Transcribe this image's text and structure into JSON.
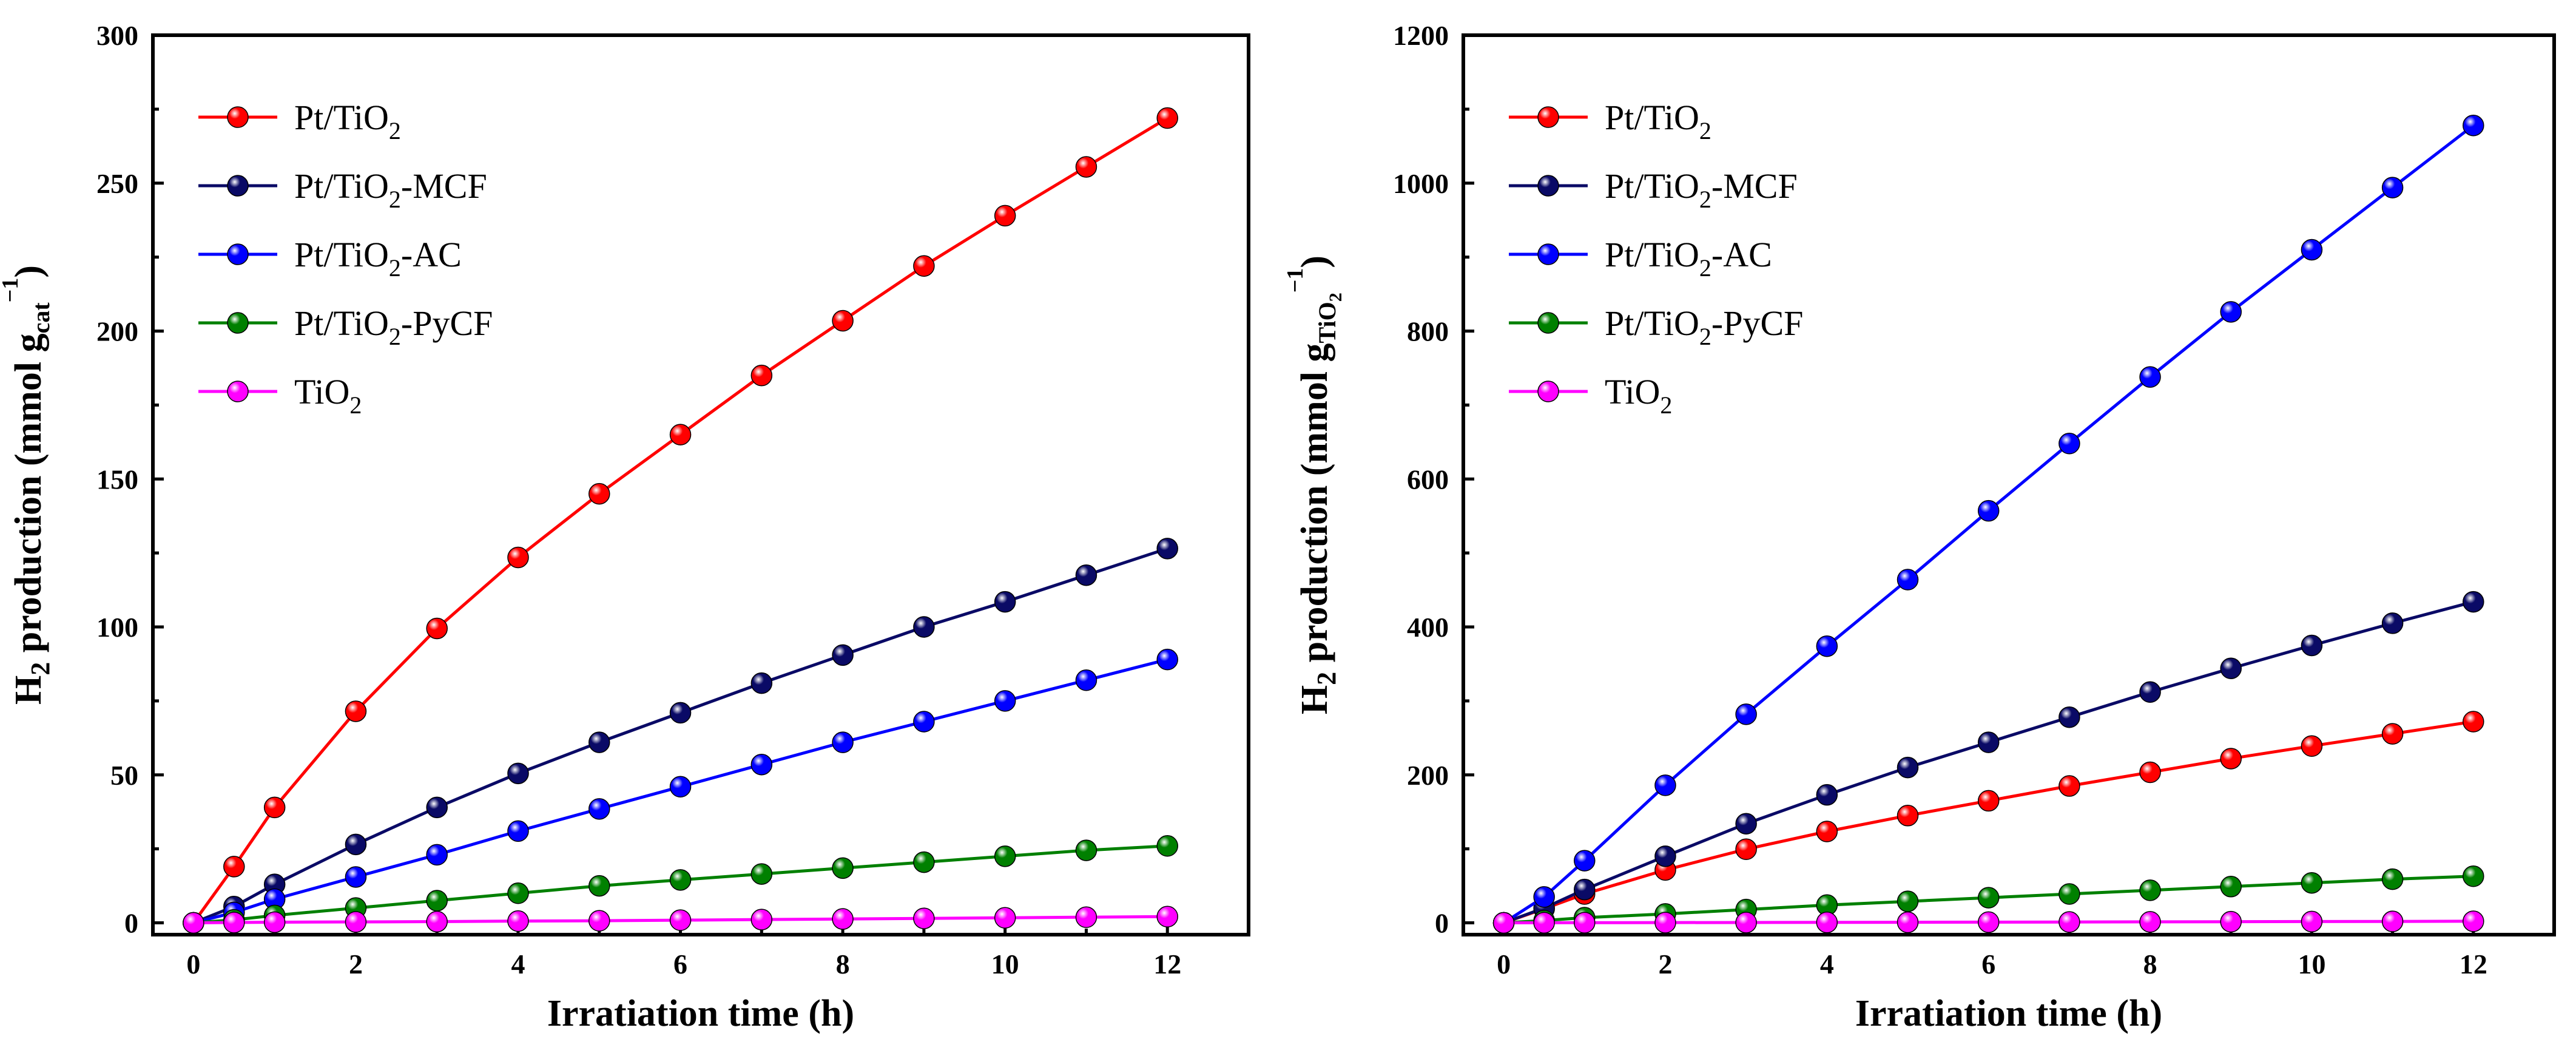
{
  "chart_data": [
    {
      "type": "line",
      "panel": "left",
      "xlabel": "Irratiation time (h)",
      "ylabel_parts": [
        "H",
        "2",
        " production (mmol g",
        "cat",
        "−1",
        ")"
      ],
      "xlim": [
        -0.5,
        13
      ],
      "ylim": [
        -4,
        300
      ],
      "xticks": [
        0,
        2,
        4,
        6,
        8,
        10,
        12
      ],
      "yticks": [
        0,
        50,
        100,
        150,
        200,
        250,
        300
      ],
      "legend_position": "top-left",
      "series": [
        {
          "name_parts": [
            "Pt/TiO",
            "2",
            ""
          ],
          "color": "#ff0000",
          "x": [
            0,
            0.5,
            1,
            2,
            3,
            4,
            5,
            6,
            7,
            8,
            9,
            10,
            11,
            12
          ],
          "values": [
            0,
            19,
            39,
            71.5,
            99.5,
            123.5,
            145,
            165,
            185,
            203.5,
            222,
            239,
            255.5,
            272
          ]
        },
        {
          "name_parts": [
            "Pt/TiO",
            "2",
            "-MCF"
          ],
          "color": "#0a0a66",
          "x": [
            0,
            0.5,
            1,
            2,
            3,
            4,
            5,
            6,
            7,
            8,
            9,
            10,
            11,
            12
          ],
          "values": [
            0,
            5.5,
            13,
            26.5,
            39,
            50.5,
            61,
            71,
            81,
            90.5,
            100,
            108.5,
            117.5,
            126.5
          ]
        },
        {
          "name_parts": [
            "Pt/TiO",
            "2",
            "-AC"
          ],
          "color": "#0000ff",
          "x": [
            0,
            0.5,
            1,
            2,
            3,
            4,
            5,
            6,
            7,
            8,
            9,
            10,
            11,
            12
          ],
          "values": [
            0,
            3.5,
            8,
            15.5,
            23,
            31,
            38.5,
            46,
            53.5,
            61,
            68,
            75,
            82,
            89
          ]
        },
        {
          "name_parts": [
            "Pt/TiO",
            "2",
            "-PyCF"
          ],
          "color": "#008000",
          "x": [
            0,
            0.5,
            1,
            2,
            3,
            4,
            5,
            6,
            7,
            8,
            9,
            10,
            11,
            12
          ],
          "values": [
            0,
            1,
            2.5,
            5,
            7.5,
            10,
            12.5,
            14.5,
            16.5,
            18.5,
            20.5,
            22.5,
            24.5,
            26
          ]
        },
        {
          "name_parts": [
            "TiO",
            "2",
            ""
          ],
          "color": "#ff00ff",
          "x": [
            0,
            0.5,
            1,
            2,
            3,
            4,
            5,
            6,
            7,
            8,
            9,
            10,
            11,
            12
          ],
          "values": [
            0,
            0.1,
            0.2,
            0.3,
            0.4,
            0.6,
            0.7,
            0.9,
            1.1,
            1.3,
            1.5,
            1.7,
            1.9,
            2.1
          ]
        }
      ]
    },
    {
      "type": "line",
      "panel": "right",
      "xlabel": "Irratiation time (h)",
      "ylabel_parts": [
        "H",
        "2",
        " production (mmol g",
        "TiO",
        "2",
        "−1",
        ")"
      ],
      "xlim": [
        -0.5,
        13
      ],
      "ylim": [
        -16,
        1200
      ],
      "xticks": [
        0,
        2,
        4,
        6,
        8,
        10,
        12
      ],
      "yticks": [
        0,
        200,
        400,
        600,
        800,
        1000,
        1200
      ],
      "legend_position": "top-left",
      "series": [
        {
          "name_parts": [
            "Pt/TiO",
            "2",
            ""
          ],
          "color": "#ff0000",
          "x": [
            0,
            0.5,
            1,
            2,
            3,
            4,
            5,
            6,
            7,
            8,
            9,
            10,
            11,
            12
          ],
          "values": [
            0,
            19,
            39,
            71.5,
            99.5,
            123.5,
            145,
            165,
            185,
            203.5,
            222,
            239,
            255.5,
            272
          ]
        },
        {
          "name_parts": [
            "Pt/TiO",
            "2",
            "-MCF"
          ],
          "color": "#0a0a66",
          "x": [
            0,
            0.5,
            1,
            2,
            3,
            4,
            5,
            6,
            7,
            8,
            9,
            10,
            11,
            12
          ],
          "values": [
            0,
            20,
            45,
            90,
            134,
            173,
            210,
            244,
            278,
            312,
            344,
            375,
            405,
            434
          ]
        },
        {
          "name_parts": [
            "Pt/TiO",
            "2",
            "-AC"
          ],
          "color": "#0000ff",
          "x": [
            0,
            0.5,
            1,
            2,
            3,
            4,
            5,
            6,
            7,
            8,
            9,
            10,
            11,
            12
          ],
          "values": [
            0,
            35,
            84,
            186,
            282,
            374,
            464,
            557,
            648,
            738,
            826,
            910,
            994,
            1078
          ]
        },
        {
          "name_parts": [
            "Pt/TiO",
            "2",
            "-PyCF"
          ],
          "color": "#008000",
          "x": [
            0,
            0.5,
            1,
            2,
            3,
            4,
            5,
            6,
            7,
            8,
            9,
            10,
            11,
            12
          ],
          "values": [
            0,
            3,
            7,
            12,
            18,
            24,
            29,
            34,
            39,
            44,
            49,
            54,
            59,
            63
          ]
        },
        {
          "name_parts": [
            "TiO",
            "2",
            ""
          ],
          "color": "#ff00ff",
          "x": [
            0,
            0.5,
            1,
            2,
            3,
            4,
            5,
            6,
            7,
            8,
            9,
            10,
            11,
            12
          ],
          "values": [
            0,
            0.1,
            0.2,
            0.3,
            0.4,
            0.6,
            0.7,
            0.9,
            1.1,
            1.3,
            1.5,
            1.7,
            1.9,
            2.1
          ]
        }
      ]
    }
  ]
}
